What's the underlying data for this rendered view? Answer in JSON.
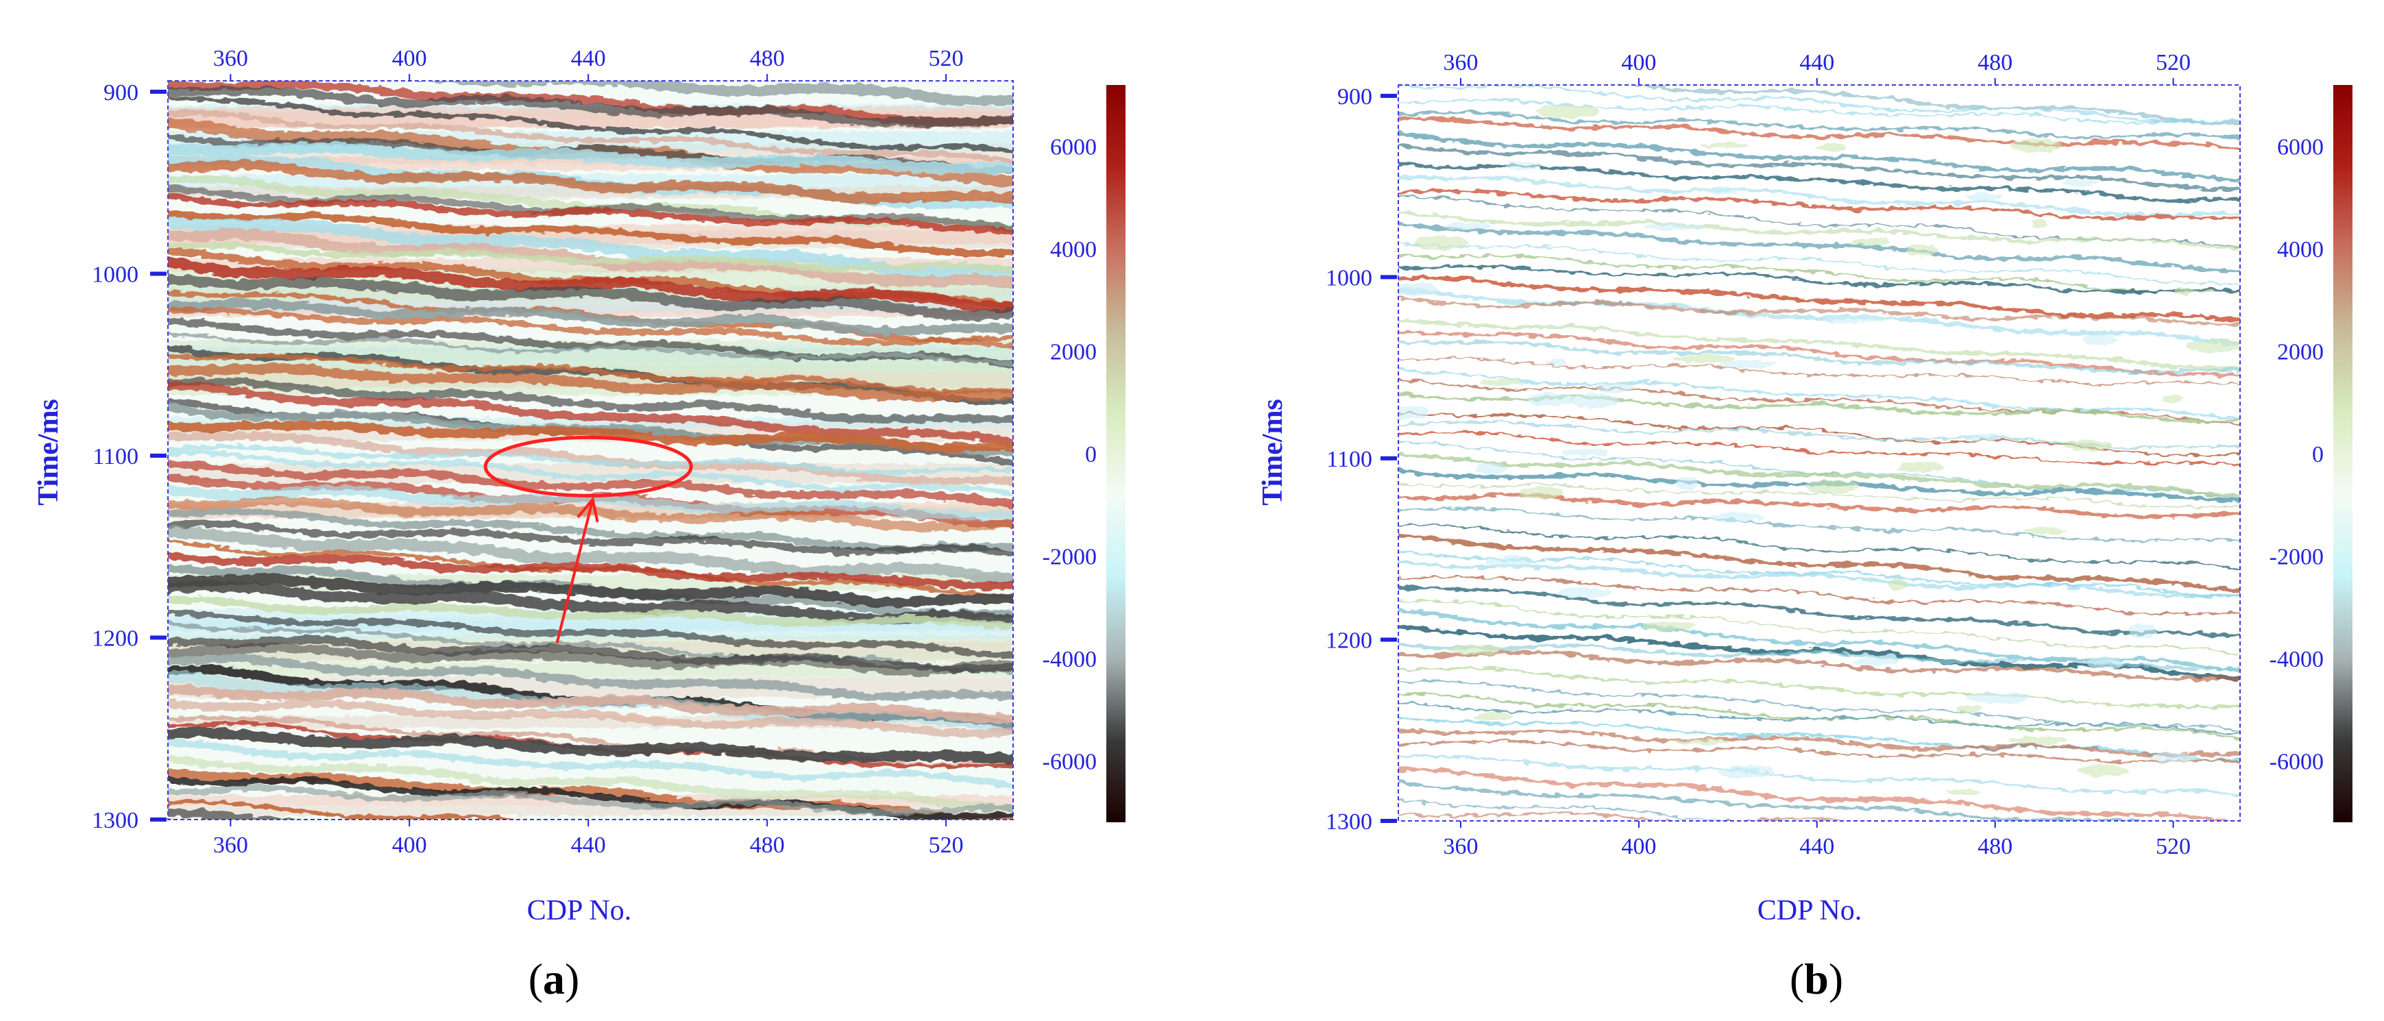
{
  "colors": {
    "axis": "#2222dd",
    "annotation": "#ff2020",
    "colorbar_stops": [
      "#1a0000",
      "#3a3a3a",
      "#a8b4b4",
      "#c8f4f8",
      "#f4fbf4",
      "#d8ecc0",
      "#c8bc98",
      "#c87060",
      "#b02018",
      "#8a0000"
    ]
  },
  "chart_data": [
    {
      "id": "a",
      "type": "heatmap",
      "title": "",
      "xlabel": "CDP No.",
      "ylabel": "Time/ms",
      "xlim": [
        346,
        535
      ],
      "ylim": [
        1300,
        894
      ],
      "xticks": [
        360,
        400,
        440,
        480,
        520
      ],
      "yticks": [
        900,
        1000,
        1100,
        1200,
        1300
      ],
      "colorbar": {
        "range": [
          -7200,
          7200
        ],
        "ticks": [
          6000,
          4000,
          2000,
          0,
          -2000,
          -4000,
          -6000
        ]
      },
      "panel_label": "a",
      "style": "strong",
      "annotation": {
        "type": "ellipse-with-arrow",
        "ellipse_center": [
          440,
          1106
        ],
        "ellipse_radius_cdp": 23,
        "ellipse_radius_ms": 16,
        "arrow_from": [
          433,
          1203
        ],
        "arrow_to": [
          441,
          1124
        ]
      }
    },
    {
      "id": "b",
      "type": "heatmap",
      "title": "",
      "xlabel": "CDP No.",
      "ylabel": "Time/ms",
      "xlim": [
        346,
        535
      ],
      "ylim": [
        1300,
        894
      ],
      "xticks": [
        360,
        400,
        440,
        480,
        520
      ],
      "yticks": [
        900,
        1000,
        1100,
        1200,
        1300
      ],
      "colorbar": {
        "range": [
          -7200,
          7200
        ],
        "ticks": [
          6000,
          4000,
          2000,
          0,
          -2000,
          -4000,
          -6000
        ]
      },
      "panel_label": "b",
      "style": "thin"
    }
  ]
}
